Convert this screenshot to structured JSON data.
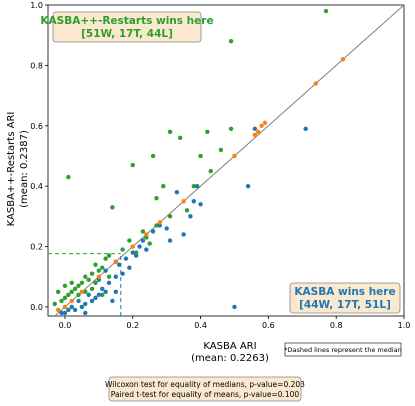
{
  "chart_data": {
    "type": "scatter",
    "xlabel": "KASBA ARI",
    "xlabel_mean": "(mean: 0.2263)",
    "ylabel": "KASBA++-Restarts ARI",
    "ylabel_mean": "(mean: 0.2387)",
    "xlim": [
      -0.05,
      1.0
    ],
    "ylim": [
      -0.03,
      1.0
    ],
    "xticks": [
      "0.0",
      "0.2",
      "0.4",
      "0.6",
      "0.8",
      "1.0"
    ],
    "yticks": [
      "0.0",
      "0.2",
      "0.4",
      "0.6",
      "0.8",
      "1.0"
    ],
    "median_x": 0.1646,
    "median_y": 0.1764,
    "colors": {
      "green": "#2ca02c",
      "blue": "#1f77b4",
      "orange": "#ff7f0e",
      "diagonal": "#808080"
    },
    "top_box": {
      "line1": "KASBA++-Restarts wins here",
      "line2": "[51W, 17T, 44L]"
    },
    "bottom_box": {
      "line1": "KASBA wins here",
      "line2": "[44W, 17T, 51L]"
    },
    "median_note": "*Dashed lines represent the median",
    "stats": [
      "Wilcoxon test for equality of medians, p-value=0.203",
      "Paired t-test for equality of means, p-value=0.100"
    ],
    "series": [
      {
        "name": "green",
        "points": [
          [
            0.77,
            0.98
          ],
          [
            0.49,
            0.88
          ],
          [
            0.31,
            0.58
          ],
          [
            0.42,
            0.58
          ],
          [
            0.49,
            0.59
          ],
          [
            0.34,
            0.56
          ],
          [
            0.46,
            0.52
          ],
          [
            0.4,
            0.5
          ],
          [
            0.26,
            0.5
          ],
          [
            0.2,
            0.47
          ],
          [
            0.01,
            0.43
          ],
          [
            0.29,
            0.4
          ],
          [
            0.38,
            0.4
          ],
          [
            0.43,
            0.45
          ],
          [
            0.27,
            0.36
          ],
          [
            0.14,
            0.33
          ],
          [
            0.31,
            0.3
          ],
          [
            0.36,
            0.32
          ],
          [
            0.27,
            0.27
          ],
          [
            0.23,
            0.25
          ],
          [
            0.19,
            0.22
          ],
          [
            0.25,
            0.21
          ],
          [
            0.17,
            0.19
          ],
          [
            0.13,
            0.17
          ],
          [
            0.15,
            0.15
          ],
          [
            0.12,
            0.16
          ],
          [
            0.11,
            0.13
          ],
          [
            0.09,
            0.14
          ],
          [
            0.1,
            0.12
          ],
          [
            0.08,
            0.11
          ],
          [
            0.07,
            0.09
          ],
          [
            0.06,
            0.1
          ],
          [
            0.05,
            0.08
          ],
          [
            0.04,
            0.07
          ],
          [
            0.03,
            0.06
          ],
          [
            0.02,
            0.05
          ],
          [
            0.01,
            0.04
          ],
          [
            0.0,
            0.03
          ],
          [
            -0.01,
            0.02
          ],
          [
            0.02,
            0.08
          ],
          [
            0.11,
            0.04
          ],
          [
            0.13,
            0.1
          ],
          [
            0.06,
            0.05
          ],
          [
            0.04,
            0.04
          ],
          [
            0.0,
            0.07
          ],
          [
            -0.02,
            0.05
          ],
          [
            -0.03,
            0.01
          ],
          [
            0.08,
            0.06
          ],
          [
            0.21,
            0.18
          ],
          [
            0.09,
            0.08
          ],
          [
            0.24,
            0.23
          ]
        ]
      },
      {
        "name": "blue",
        "points": [
          [
            0.71,
            0.59
          ],
          [
            0.56,
            0.59
          ],
          [
            0.54,
            0.4
          ],
          [
            0.39,
            0.4
          ],
          [
            0.38,
            0.35
          ],
          [
            0.33,
            0.38
          ],
          [
            0.37,
            0.3
          ],
          [
            0.4,
            0.34
          ],
          [
            0.35,
            0.24
          ],
          [
            0.31,
            0.22
          ],
          [
            0.3,
            0.26
          ],
          [
            0.26,
            0.25
          ],
          [
            0.23,
            0.22
          ],
          [
            0.21,
            0.17
          ],
          [
            0.19,
            0.13
          ],
          [
            0.17,
            0.11
          ],
          [
            0.16,
            0.14
          ],
          [
            0.15,
            0.1
          ],
          [
            0.13,
            0.08
          ],
          [
            0.12,
            0.05
          ],
          [
            0.11,
            0.06
          ],
          [
            0.1,
            0.09
          ],
          [
            0.09,
            0.03
          ],
          [
            0.08,
            0.02
          ],
          [
            0.07,
            0.04
          ],
          [
            0.06,
            0.01
          ],
          [
            0.05,
            0.0
          ],
          [
            0.04,
            0.02
          ],
          [
            0.03,
            -0.01
          ],
          [
            0.02,
            0.0
          ],
          [
            0.01,
            -0.01
          ],
          [
            0.0,
            -0.02
          ],
          [
            0.5,
            0.0
          ],
          [
            0.14,
            0.02
          ],
          [
            0.18,
            0.16
          ],
          [
            0.24,
            0.19
          ],
          [
            0.28,
            0.27
          ],
          [
            0.22,
            0.2
          ],
          [
            0.1,
            0.04
          ],
          [
            0.06,
            -0.02
          ],
          [
            -0.01,
            -0.02
          ],
          [
            0.15,
            0.05
          ],
          [
            0.12,
            0.12
          ],
          [
            0.2,
            0.18
          ]
        ]
      },
      {
        "name": "orange",
        "points": [
          [
            0.82,
            0.82
          ],
          [
            0.74,
            0.74
          ],
          [
            0.59,
            0.61
          ],
          [
            0.58,
            0.6
          ],
          [
            0.57,
            0.58
          ],
          [
            0.56,
            0.57
          ],
          [
            0.5,
            0.5
          ],
          [
            0.28,
            0.28
          ],
          [
            0.24,
            0.24
          ],
          [
            0.2,
            0.2
          ],
          [
            0.0,
            0.0
          ],
          [
            -0.02,
            -0.01
          ],
          [
            0.02,
            0.02
          ],
          [
            0.05,
            0.05
          ],
          [
            0.1,
            0.1
          ],
          [
            0.15,
            0.15
          ],
          [
            0.35,
            0.35
          ]
        ]
      }
    ]
  }
}
